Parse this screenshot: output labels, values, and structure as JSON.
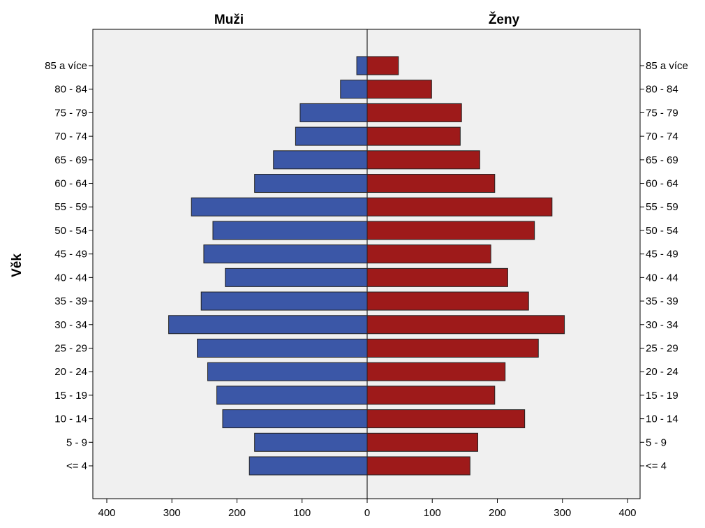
{
  "chart_data": {
    "type": "bar",
    "orientation": "horizontal",
    "layout": "population-pyramid",
    "ylabel": "Věk",
    "xlabel": "",
    "categories": [
      "<= 4",
      "5 - 9",
      "10 - 14",
      "15 - 19",
      "20 - 24",
      "25 - 29",
      "30 - 34",
      "35 - 39",
      "40 - 44",
      "45 - 49",
      "50 - 54",
      "55 - 59",
      "60 - 64",
      "65 - 69",
      "70 - 74",
      "75 - 79",
      "80 - 84",
      "85 a více"
    ],
    "series": [
      {
        "name": "Muži",
        "side": "left",
        "color": "#3b57a7",
        "values": [
          181,
          173,
          222,
          231,
          245,
          261,
          305,
          255,
          218,
          251,
          237,
          270,
          173,
          144,
          110,
          103,
          41,
          16
        ]
      },
      {
        "name": "Ženy",
        "side": "right",
        "color": "#9e1a1a",
        "values": [
          158,
          170,
          242,
          196,
          212,
          263,
          303,
          248,
          216,
          190,
          257,
          284,
          196,
          173,
          143,
          145,
          99,
          48
        ]
      }
    ],
    "xlim": [
      0,
      400
    ],
    "xticks": [
      400,
      300,
      200,
      100,
      0,
      100,
      200,
      300,
      400
    ],
    "plot_background": "#f0f0f0",
    "grid": false
  }
}
